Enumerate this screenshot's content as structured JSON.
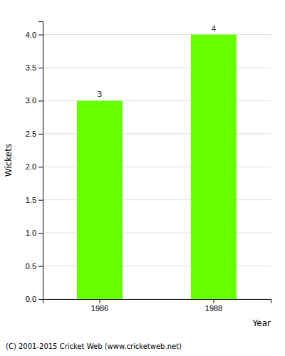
{
  "chart_data": {
    "type": "bar",
    "categories": [
      "1986",
      "1988"
    ],
    "values": [
      3,
      4
    ],
    "color": "#66ff00",
    "ylabel": "Wickets",
    "xlabel": "Year",
    "footer": "(C) 2001-2015 Cricket Web (www.cricketweb.net)",
    "ylim": [
      0,
      4.2
    ],
    "yticks": [
      {
        "value": 0,
        "label": "0.0"
      },
      0.5,
      {
        "value": 1,
        "label": "1.0"
      },
      1.5,
      {
        "value": 2,
        "label": "2.0"
      },
      2.5,
      {
        "value": 3,
        "label": "3.0"
      },
      3.5,
      {
        "value": 4,
        "label": "4.0"
      }
    ],
    "grid": true,
    "data_labels": true
  }
}
